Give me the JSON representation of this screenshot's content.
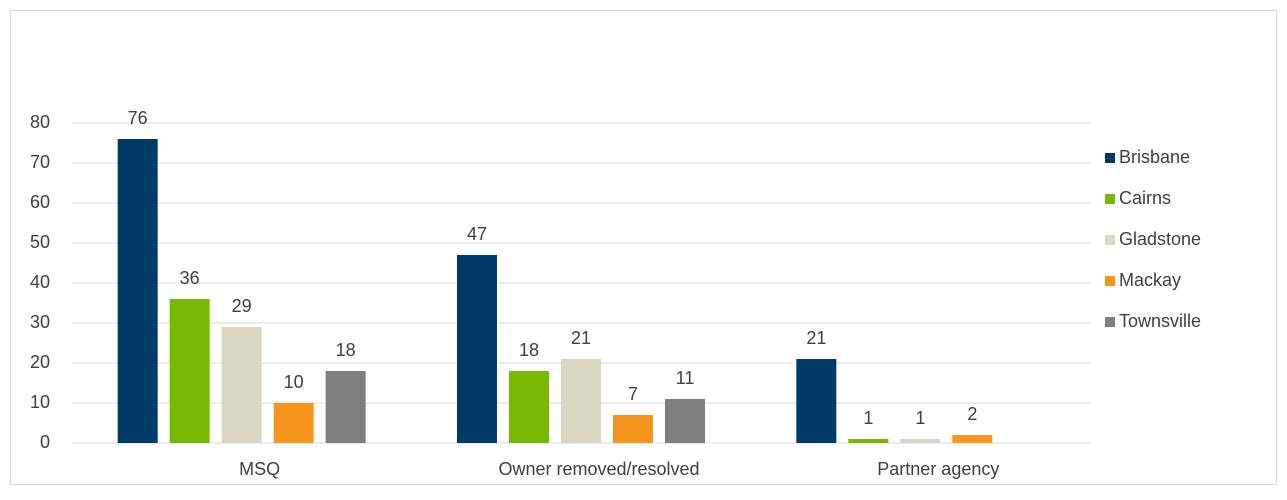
{
  "chart_data": {
    "type": "bar",
    "categories": [
      "MSQ",
      "Owner removed/resolved",
      "Partner agency"
    ],
    "series": [
      {
        "name": "Brisbane",
        "color": "#003a66",
        "values": [
          76,
          47,
          21
        ]
      },
      {
        "name": "Cairns",
        "color": "#77b800",
        "values": [
          36,
          18,
          1
        ]
      },
      {
        "name": "Gladstone",
        "color": "#d9d6c1",
        "values": [
          29,
          21,
          1
        ]
      },
      {
        "name": "Mackay",
        "color": "#f7941d",
        "values": [
          10,
          7,
          2
        ]
      },
      {
        "name": "Townsville",
        "color": "#7f7f7f",
        "values": [
          18,
          11,
          null
        ]
      }
    ],
    "ylim": [
      0,
      80
    ],
    "yticks": [
      0,
      10,
      20,
      30,
      40,
      50,
      60,
      70,
      80
    ],
    "grid": true,
    "legend": "right"
  }
}
